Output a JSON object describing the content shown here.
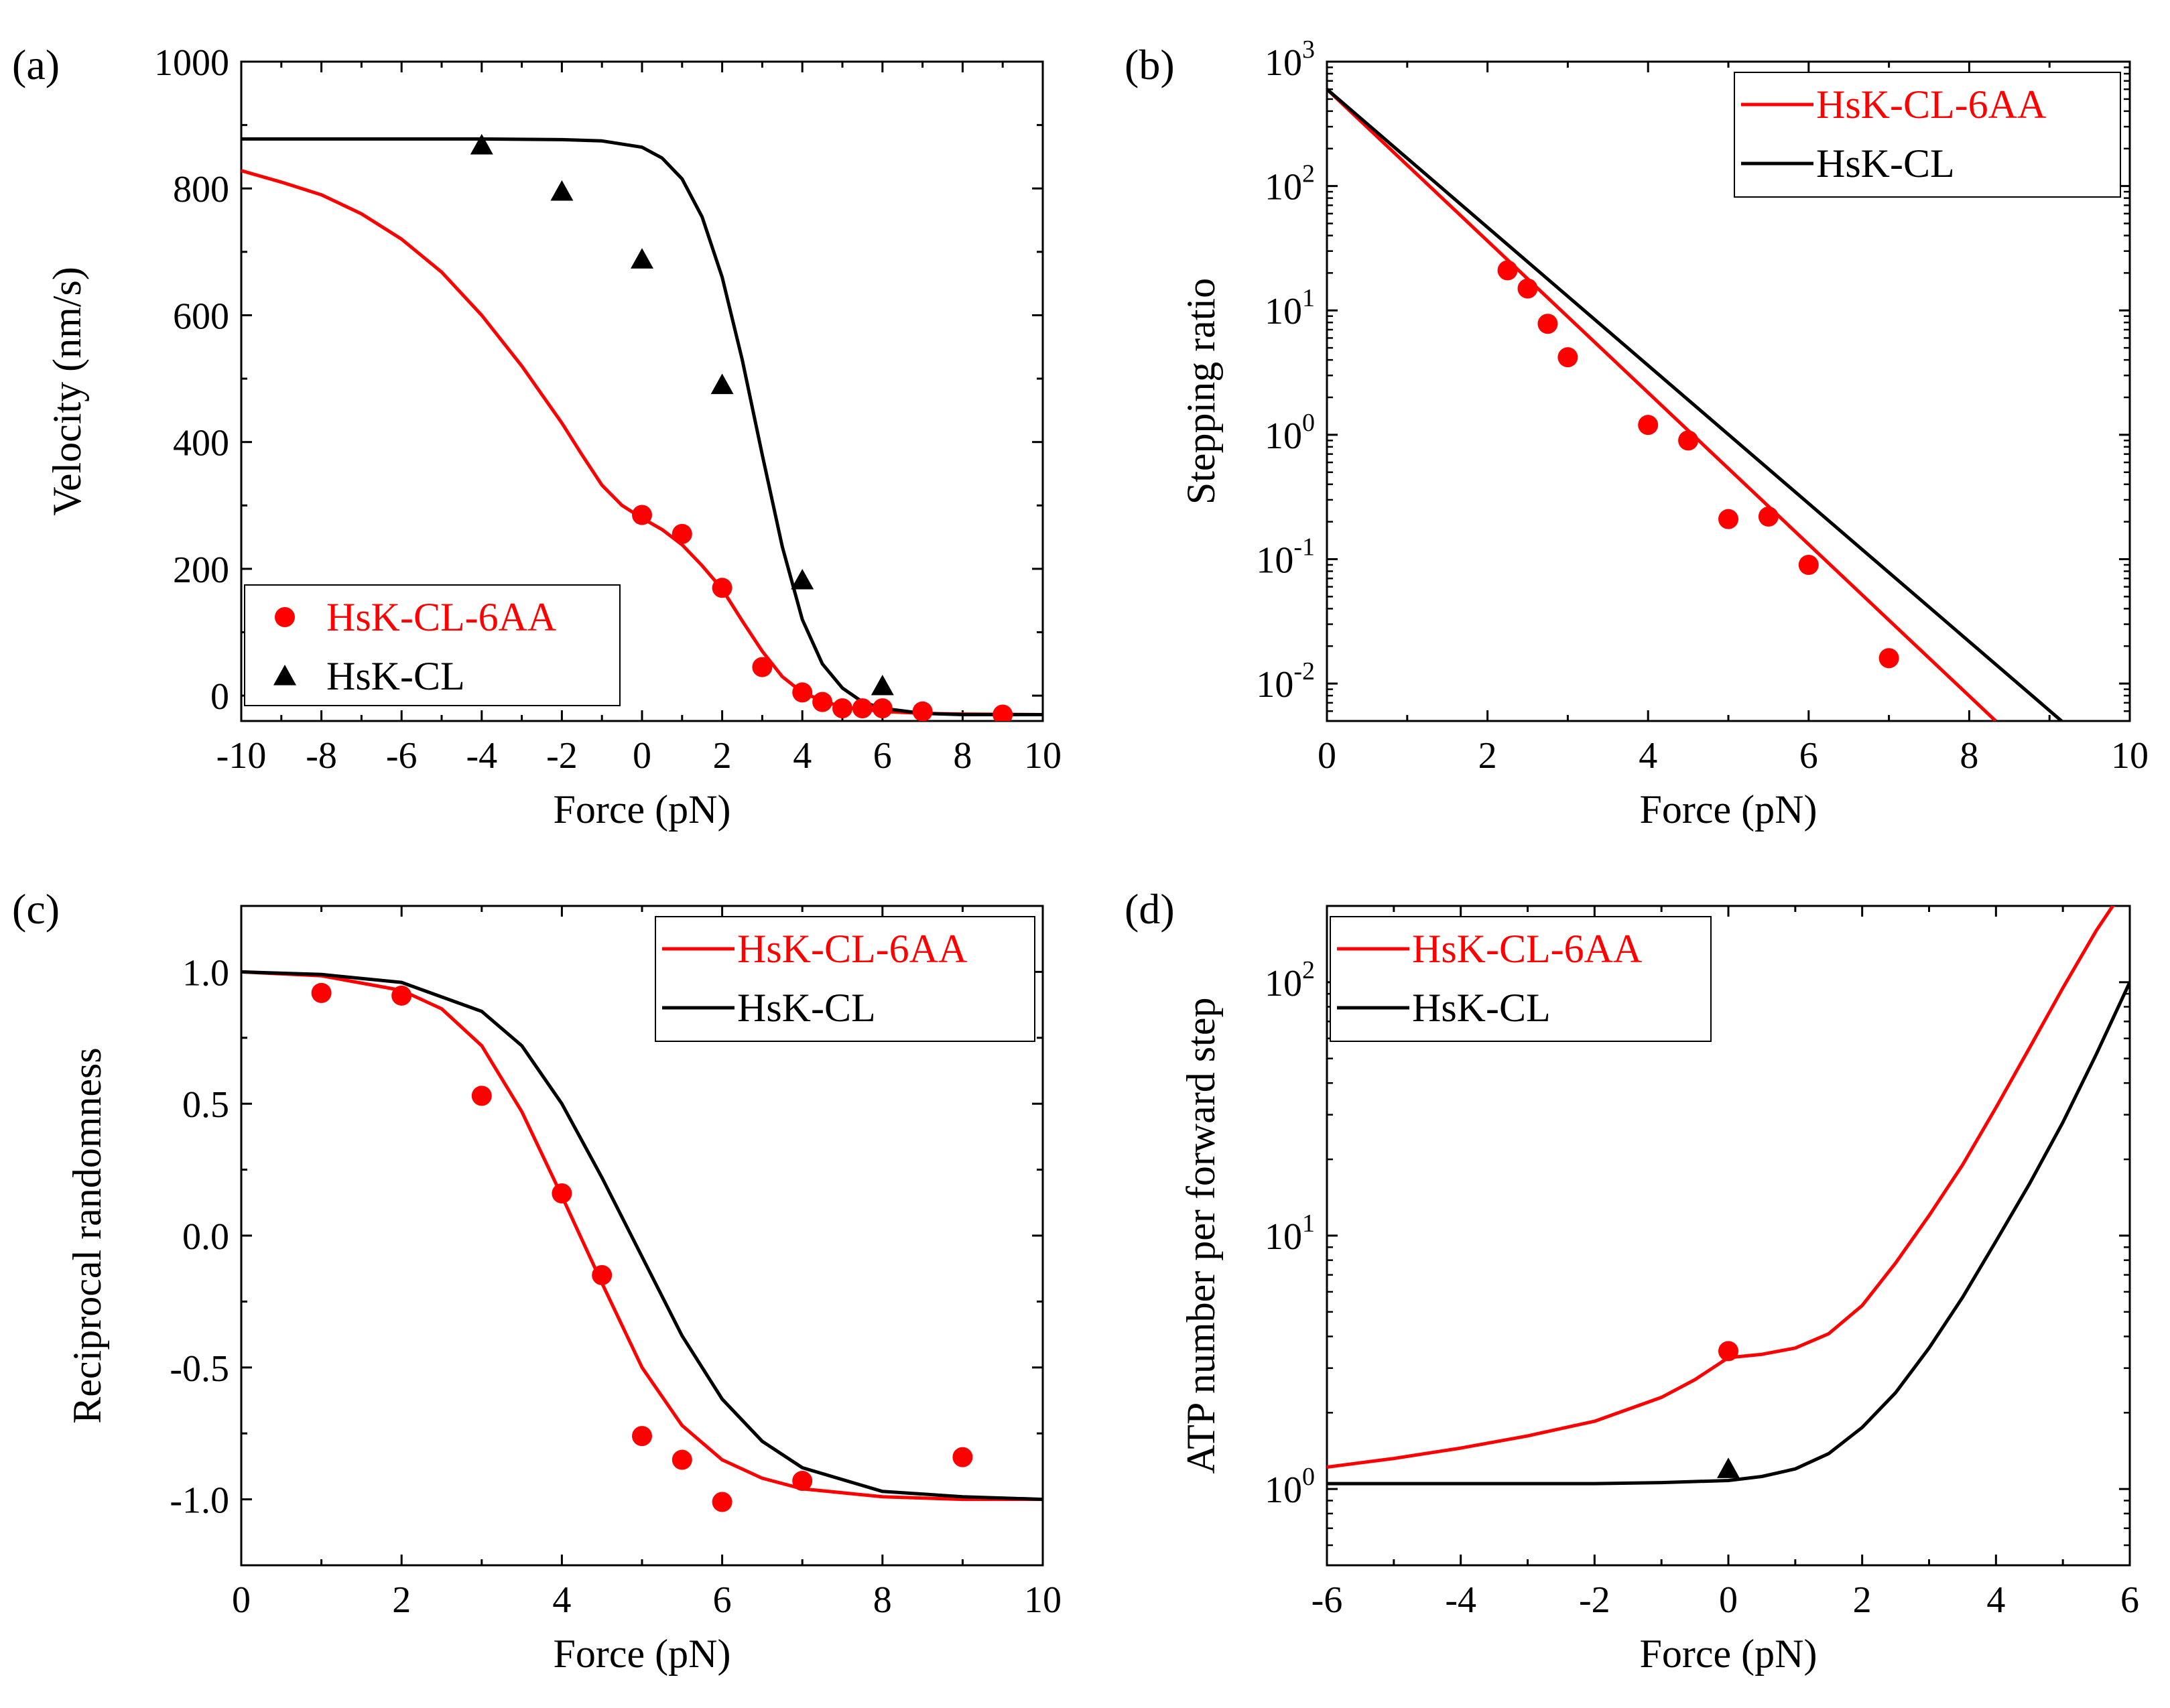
{
  "colors": {
    "red": "#ff0000",
    "black": "#000000"
  },
  "chart_data": [
    {
      "panel": "(a)",
      "type": "scatter",
      "xlabel": "Force (pN)",
      "ylabel": "Velocity (nm/s)",
      "xlim": [
        -10,
        10
      ],
      "ylim": [
        -40,
        1000
      ],
      "xscale": "linear",
      "yscale": "linear",
      "xticks": [
        -10,
        -8,
        -6,
        -4,
        -2,
        0,
        2,
        4,
        6,
        8,
        10
      ],
      "yticks": [
        0,
        200,
        400,
        600,
        800,
        1000
      ],
      "legend_position": "bottom-left",
      "legend": [
        "HsK-CL-6AA",
        "HsK-CL"
      ],
      "series": [
        {
          "name": "HsK-CL-6AA",
          "kind": "points",
          "marker": "circle",
          "color": "#ff0000",
          "x": [
            0,
            1,
            2,
            3,
            4,
            4.5,
            5,
            5.5,
            6,
            7,
            9
          ],
          "y": [
            285,
            255,
            170,
            45,
            5,
            -10,
            -20,
            -20,
            -20,
            -25,
            -30
          ]
        },
        {
          "name": "HsK-CL-6AA",
          "kind": "curve",
          "color": "#ff0000",
          "x": [
            -10,
            -9,
            -8,
            -7,
            -6,
            -5,
            -4,
            -3,
            -2,
            -1.5,
            -1,
            -0.5,
            0,
            0.5,
            1,
            1.5,
            2,
            2.5,
            3,
            3.5,
            4,
            4.5,
            5,
            6,
            7,
            8,
            10
          ],
          "y": [
            828,
            810,
            790,
            760,
            720,
            668,
            600,
            520,
            430,
            380,
            332,
            300,
            280,
            262,
            238,
            205,
            168,
            118,
            70,
            30,
            5,
            -8,
            -18,
            -25,
            -28,
            -29,
            -30
          ]
        },
        {
          "name": "HsK-CL",
          "kind": "points",
          "marker": "triangle",
          "color": "#000000",
          "x": [
            -4,
            -2,
            0,
            2,
            4,
            6
          ],
          "y": [
            868,
            795,
            688,
            490,
            182,
            15
          ]
        },
        {
          "name": "HsK-CL",
          "kind": "curve",
          "color": "#000000",
          "x": [
            -10,
            -6,
            -4,
            -2,
            -1,
            0,
            0.5,
            1,
            1.5,
            2,
            2.5,
            3,
            3.5,
            4,
            4.5,
            5,
            5.5,
            6,
            7,
            8,
            10
          ],
          "y": [
            878,
            878,
            878,
            877,
            875,
            865,
            848,
            815,
            755,
            660,
            530,
            380,
            235,
            120,
            50,
            12,
            -10,
            -20,
            -28,
            -30,
            -30
          ]
        }
      ]
    },
    {
      "panel": "(b)",
      "type": "scatter",
      "xlabel": "Force (pN)",
      "ylabel": "Stepping ratio",
      "xlim": [
        0,
        10
      ],
      "ylim": [
        0.005,
        1000
      ],
      "xscale": "linear",
      "yscale": "log",
      "xticks": [
        0,
        2,
        4,
        6,
        8,
        10
      ],
      "ytick_exponents": [
        -2,
        -1,
        0,
        1,
        2,
        3
      ],
      "tick_base": "10",
      "legend_position": "top-right",
      "legend": [
        "HsK-CL-6AA",
        "HsK-CL"
      ],
      "series": [
        {
          "name": "HsK-CL-6AA",
          "kind": "points",
          "marker": "circle",
          "color": "#ff0000",
          "x": [
            2.25,
            2.5,
            2.75,
            3,
            4,
            4.5,
            5,
            5.5,
            6,
            7
          ],
          "y": [
            21,
            15,
            7.8,
            4.2,
            1.2,
            0.9,
            0.21,
            0.22,
            0.09,
            0.016
          ]
        },
        {
          "name": "HsK-CL-6AA",
          "kind": "curve",
          "color": "#ff0000",
          "x": [
            0,
            8.33
          ],
          "y": [
            600,
            0.005
          ]
        },
        {
          "name": "HsK-CL",
          "kind": "curve",
          "color": "#000000",
          "x": [
            0,
            9.15
          ],
          "y": [
            600,
            0.005
          ]
        }
      ]
    },
    {
      "panel": "(c)",
      "type": "scatter",
      "xlabel": "Force (pN)",
      "ylabel": "Reciprocal randomness",
      "xlim": [
        0,
        10
      ],
      "ylim": [
        -1.25,
        1.25
      ],
      "xscale": "linear",
      "yscale": "linear",
      "xticks": [
        0,
        2,
        4,
        6,
        8,
        10
      ],
      "yticks": [
        -1.0,
        -0.5,
        0.0,
        0.5,
        1.0
      ],
      "yticks_labels": [
        "-1.0",
        "-0.5",
        "0.0",
        "0.5",
        "1.0"
      ],
      "legend_position": "top-right",
      "legend": [
        "HsK-CL-6AA",
        "HsK-CL"
      ],
      "series": [
        {
          "name": "HsK-CL-6AA",
          "kind": "points",
          "marker": "circle",
          "color": "#ff0000",
          "x": [
            1,
            2,
            3,
            4,
            4.5,
            5,
            5.5,
            6,
            7,
            9
          ],
          "y": [
            0.92,
            0.91,
            0.53,
            0.16,
            -0.15,
            -0.76,
            -0.85,
            -1.01,
            -0.93,
            -0.84
          ]
        },
        {
          "name": "HsK-CL-6AA",
          "kind": "curve",
          "color": "#ff0000",
          "x": [
            0,
            1,
            2,
            2.5,
            3,
            3.5,
            4,
            4.5,
            5,
            5.5,
            6,
            6.5,
            7,
            8,
            9,
            10
          ],
          "y": [
            1.0,
            0.985,
            0.93,
            0.86,
            0.72,
            0.47,
            0.15,
            -0.18,
            -0.5,
            -0.72,
            -0.85,
            -0.92,
            -0.96,
            -0.99,
            -1.0,
            -1.0
          ]
        },
        {
          "name": "HsK-CL",
          "kind": "curve",
          "color": "#000000",
          "x": [
            0,
            1,
            2,
            3,
            3.5,
            4,
            4.5,
            5,
            5.5,
            6,
            6.5,
            7,
            8,
            9,
            10
          ],
          "y": [
            1.0,
            0.99,
            0.96,
            0.85,
            0.72,
            0.5,
            0.22,
            -0.08,
            -0.38,
            -0.62,
            -0.78,
            -0.88,
            -0.97,
            -0.99,
            -1.0
          ]
        }
      ]
    },
    {
      "panel": "(d)",
      "type": "scatter",
      "xlabel": "Force (pN)",
      "ylabel": "ATP number per forward step",
      "xlim": [
        -6,
        6
      ],
      "ylim": [
        0.5,
        200
      ],
      "xscale": "linear",
      "yscale": "log",
      "xticks": [
        -6,
        -4,
        -2,
        0,
        2,
        4,
        6
      ],
      "ytick_exponents": [
        0,
        1,
        2
      ],
      "tick_base": "10",
      "legend_position": "top-left",
      "legend": [
        "HsK-CL-6AA",
        "HsK-CL"
      ],
      "series": [
        {
          "name": "HsK-CL-6AA",
          "kind": "points",
          "marker": "circle",
          "color": "#ff0000",
          "x": [
            0
          ],
          "y": [
            3.5
          ]
        },
        {
          "name": "HsK-CL-6AA",
          "kind": "curve",
          "color": "#ff0000",
          "x": [
            -6,
            -5,
            -4,
            -3,
            -2,
            -1,
            -0.5,
            0,
            0.5,
            1,
            1.5,
            2,
            2.5,
            3,
            3.5,
            4,
            4.5,
            5,
            5.5,
            5.8
          ],
          "y": [
            1.22,
            1.32,
            1.45,
            1.62,
            1.85,
            2.3,
            2.7,
            3.3,
            3.4,
            3.6,
            4.1,
            5.3,
            7.8,
            12,
            19,
            32,
            55,
            95,
            160,
            210
          ]
        },
        {
          "name": "HsK-CL",
          "kind": "points",
          "marker": "triangle",
          "color": "#000000",
          "x": [
            0
          ],
          "y": [
            1.2
          ]
        },
        {
          "name": "HsK-CL",
          "kind": "curve",
          "color": "#000000",
          "x": [
            -6,
            -4,
            -2,
            -1,
            0,
            0.5,
            1,
            1.5,
            2,
            2.5,
            3,
            3.5,
            4,
            4.5,
            5,
            5.5,
            6
          ],
          "y": [
            1.05,
            1.05,
            1.05,
            1.06,
            1.08,
            1.12,
            1.2,
            1.38,
            1.75,
            2.4,
            3.6,
            5.7,
            9.5,
            16,
            28,
            52,
            100
          ]
        }
      ]
    }
  ]
}
